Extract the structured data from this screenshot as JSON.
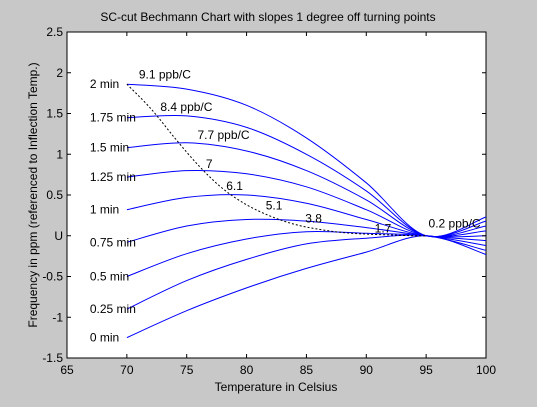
{
  "chart_data": {
    "type": "line",
    "title": "SC-cut Bechmann Chart with slopes 1 degree off turning points",
    "xlabel": "Temperature in Celsius",
    "ylabel": "Frequency in ppm (referenced to Inflection Temp.)",
    "xlim": [
      65,
      100
    ],
    "ylim": [
      -1.5,
      2.5
    ],
    "xticks": [
      "65",
      "70",
      "75",
      "80",
      "85",
      "90",
      "95",
      "100"
    ],
    "yticks": [
      "-1.5",
      "-1",
      "-0.5",
      "U",
      "0.5",
      "1",
      "1.5",
      "2",
      "2.5"
    ],
    "grid": false,
    "series": [
      {
        "label": "0 min",
        "points": [
          [
            70,
            -1.25
          ],
          [
            75,
            -0.92
          ],
          [
            80,
            -0.64
          ],
          [
            85,
            -0.4
          ],
          [
            90,
            -0.2
          ],
          [
            95,
            0.0
          ],
          [
            100,
            -0.23
          ]
        ]
      },
      {
        "label": "0.25 min",
        "points": [
          [
            70,
            -0.9
          ],
          [
            75,
            -0.55
          ],
          [
            80,
            -0.29
          ],
          [
            85,
            -0.1
          ],
          [
            90,
            -0.03
          ],
          [
            95,
            0.0
          ],
          [
            100,
            -0.18
          ]
        ]
      },
      {
        "label": "0.5 min",
        "points": [
          [
            70,
            -0.5
          ],
          [
            75,
            -0.22
          ],
          [
            80,
            -0.04
          ],
          [
            85,
            0.05
          ],
          [
            90,
            0.03
          ],
          [
            95,
            0.0
          ],
          [
            100,
            -0.12
          ]
        ]
      },
      {
        "label": "0.75 min",
        "points": [
          [
            70,
            -0.08
          ],
          [
            75,
            0.12
          ],
          [
            80,
            0.2
          ],
          [
            85,
            0.18
          ],
          [
            90,
            0.1
          ],
          [
            95,
            0.0
          ],
          [
            100,
            -0.06
          ]
        ]
      },
      {
        "label": "1 min",
        "points": [
          [
            70,
            0.32
          ],
          [
            75,
            0.47
          ],
          [
            80,
            0.5
          ],
          [
            85,
            0.4
          ],
          [
            90,
            0.2
          ],
          [
            95,
            0.0
          ],
          [
            100,
            0.0
          ]
        ]
      },
      {
        "label": "1.25 min",
        "points": [
          [
            70,
            0.72
          ],
          [
            75,
            0.8
          ],
          [
            80,
            0.76
          ],
          [
            85,
            0.6
          ],
          [
            90,
            0.32
          ],
          [
            95,
            0.0
          ],
          [
            100,
            0.06
          ]
        ]
      },
      {
        "label": "1.5 min",
        "points": [
          [
            70,
            1.08
          ],
          [
            75,
            1.14
          ],
          [
            80,
            1.04
          ],
          [
            85,
            0.8
          ],
          [
            90,
            0.44
          ],
          [
            95,
            0.0
          ],
          [
            100,
            0.12
          ]
        ]
      },
      {
        "label": "1.75 min",
        "points": [
          [
            70,
            1.45
          ],
          [
            75,
            1.47
          ],
          [
            80,
            1.33
          ],
          [
            85,
            1.0
          ],
          [
            90,
            0.55
          ],
          [
            95,
            0.0
          ],
          [
            100,
            0.18
          ]
        ]
      },
      {
        "label": "2 min",
        "points": [
          [
            70,
            1.86
          ],
          [
            75,
            1.8
          ],
          [
            80,
            1.6
          ],
          [
            85,
            1.2
          ],
          [
            90,
            0.65
          ],
          [
            95,
            0.0
          ],
          [
            100,
            0.23
          ]
        ]
      }
    ],
    "turning_point_curve": {
      "style": "dashed",
      "points": [
        [
          70,
          1.86
        ],
        [
          72,
          1.56
        ],
        [
          74,
          1.2
        ],
        [
          76,
          0.86
        ],
        [
          78,
          0.58
        ],
        [
          80,
          0.38
        ],
        [
          82,
          0.24
        ],
        [
          84,
          0.14
        ],
        [
          86,
          0.08
        ],
        [
          88,
          0.04
        ],
        [
          90,
          0.02
        ],
        [
          92,
          0.01
        ],
        [
          94,
          0.0
        ],
        [
          95,
          0.0
        ]
      ]
    },
    "annotations": [
      {
        "text": "9.1 ppb/C",
        "x": 71.0,
        "y": 1.93
      },
      {
        "text": "8.4 ppb/C",
        "x": 72.8,
        "y": 1.53
      },
      {
        "text": "7.7 ppb/C",
        "x": 75.9,
        "y": 1.19
      },
      {
        "text": "7",
        "x": 76.6,
        "y": 0.83
      },
      {
        "text": "6.1",
        "x": 78.3,
        "y": 0.56
      },
      {
        "text": "5.1",
        "x": 81.6,
        "y": 0.32
      },
      {
        "text": "3.8",
        "x": 84.9,
        "y": 0.16
      },
      {
        "text": "1.7",
        "x": 90.7,
        "y": 0.04
      },
      {
        "text": "0.2 ppb/C",
        "x": 95.2,
        "y": 0.1
      }
    ],
    "line_color": "#0000ff"
  }
}
